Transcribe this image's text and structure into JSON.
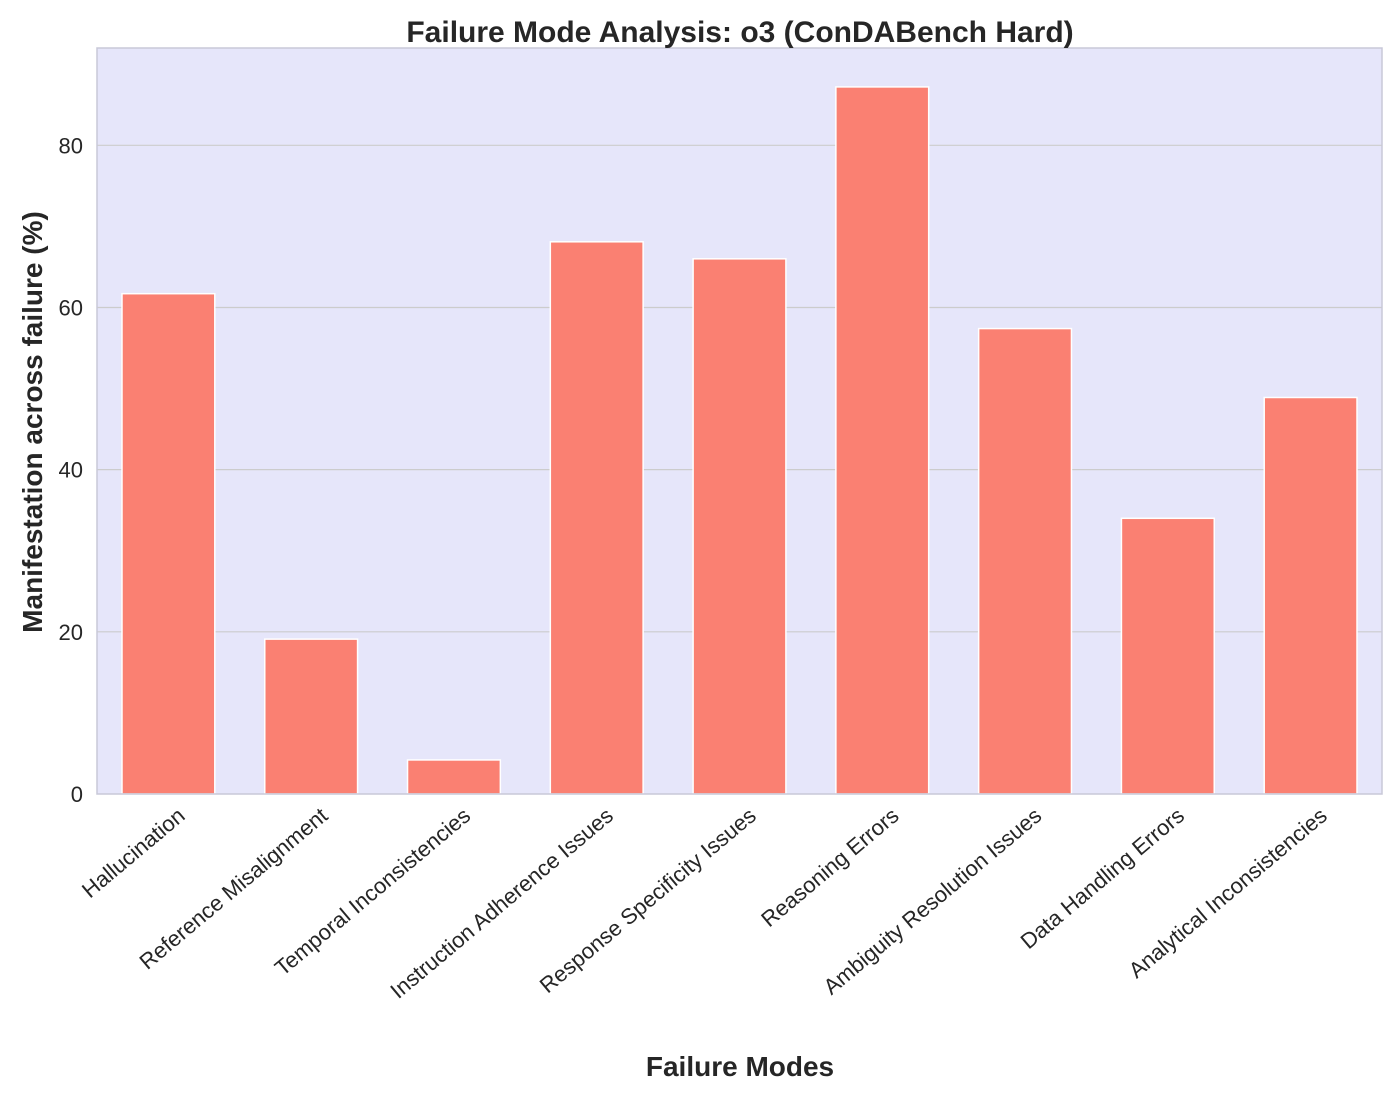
{
  "chart_data": {
    "type": "bar",
    "title": "Failure Mode Analysis: o3 (ConDABench Hard)",
    "xlabel": "Failure Modes",
    "ylabel": "Manifestation across failure (%)",
    "categories": [
      "Hallucination",
      "Reference Misalignment",
      "Temporal Inconsistencies",
      "Instruction Adherence Issues",
      "Response Specificity Issues",
      "Reasoning Errors",
      "Ambiguity Resolution Issues",
      "Data Handling Errors",
      "Analytical Inconsistencies"
    ],
    "values": [
      61.7,
      19.1,
      4.2,
      68.1,
      66.0,
      87.2,
      57.4,
      34.0,
      48.9
    ],
    "ylim": [
      0,
      92
    ],
    "yticks": [
      0,
      20,
      40,
      60,
      80
    ],
    "grid": true,
    "colors": {
      "bar": "#fa8072",
      "plot_background": "#e6e6fa",
      "frame": "#c8c8d8",
      "grid": "#cccccc"
    }
  }
}
